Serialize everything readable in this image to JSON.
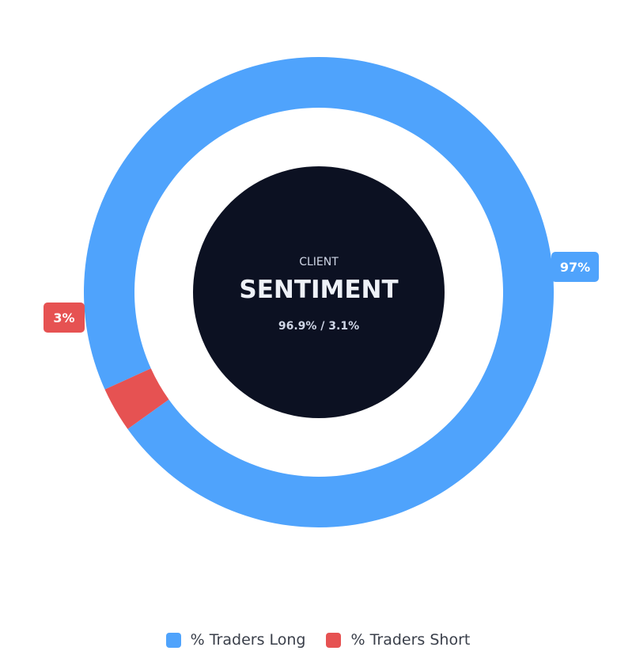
{
  "chart_data": {
    "type": "pie",
    "center": {
      "kicker": "CLIENT",
      "title": "SENTIMENT",
      "ratio": "96.9% / 3.1%"
    },
    "series": [
      {
        "name": "% Traders Long",
        "value": 96.9,
        "color": "#4fa3fc",
        "data_label": "97%"
      },
      {
        "name": "% Traders Short",
        "value": 3.1,
        "color": "#e65252",
        "data_label": "3%"
      }
    ],
    "legend_position": "bottom",
    "center_color": "#0c1122"
  }
}
